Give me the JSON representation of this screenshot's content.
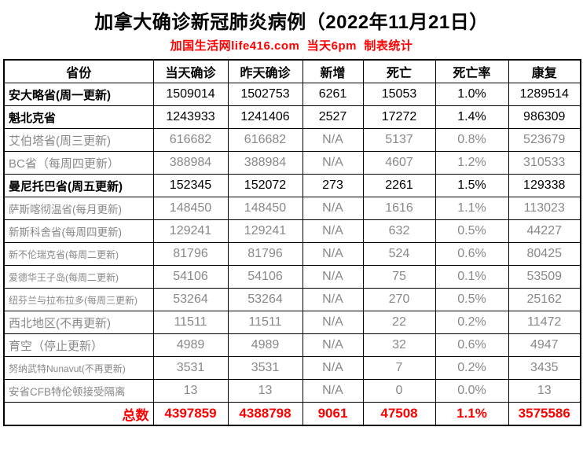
{
  "page": {
    "title": "加拿大确诊新冠肺炎病例（2022年11月21日）",
    "subtitle": "加国生活网life416.com  当天6pm  制表统计"
  },
  "colors": {
    "accent_red": "#ff0000",
    "muted_gray": "#888888",
    "text_black": "#000000",
    "border_black": "#000000",
    "background": "#ffffff"
  },
  "chart_data": {
    "type": "table",
    "title": "加拿大确诊新冠肺炎病例（2022年11月21日）",
    "columns": [
      "省份",
      "当天确诊",
      "昨天确诊",
      "新增",
      "死亡",
      "死亡率",
      "康复"
    ],
    "rows": [
      {
        "name": "安大略省(周一更新)",
        "today": "1509014",
        "yesterday": "1502753",
        "added": "6261",
        "deaths": "15053",
        "rate": "1.0%",
        "recovered": "1289514",
        "style": "active"
      },
      {
        "name": "魁北克省",
        "today": "1243933",
        "yesterday": "1241406",
        "added": "2527",
        "deaths": "17272",
        "rate": "1.4%",
        "recovered": "986309",
        "style": "active"
      },
      {
        "name": "艾伯塔省(周三更新)",
        "today": "616682",
        "yesterday": "616682",
        "added": "N/A",
        "deaths": "5137",
        "rate": "0.8%",
        "recovered": "523679",
        "style": "muted"
      },
      {
        "name": "BC省（每周四更新）",
        "today": "388984",
        "yesterday": "388984",
        "added": "N/A",
        "deaths": "4607",
        "rate": "1.2%",
        "recovered": "310533",
        "style": "muted"
      },
      {
        "name": "曼尼托巴省(周五更新)",
        "today": "152345",
        "yesterday": "152072",
        "added": "273",
        "deaths": "2261",
        "rate": "1.5%",
        "recovered": "129338",
        "style": "active"
      },
      {
        "name": "萨斯喀彻温省(每月更新)",
        "today": "148450",
        "yesterday": "148450",
        "added": "N/A",
        "deaths": "1616",
        "rate": "1.1%",
        "recovered": "113023",
        "style": "muted"
      },
      {
        "name": "新斯科舍省(每周四更新)",
        "today": "129241",
        "yesterday": "129241",
        "added": "N/A",
        "deaths": "632",
        "rate": "0.5%",
        "recovered": "44227",
        "style": "muted"
      },
      {
        "name": "新不伦瑞克省(每周二更新)",
        "today": "81796",
        "yesterday": "81796",
        "added": "N/A",
        "deaths": "524",
        "rate": "0.6%",
        "recovered": "80425",
        "style": "muted"
      },
      {
        "name": "爱德华王子岛(每周二更新)",
        "today": "54106",
        "yesterday": "54106",
        "added": "N/A",
        "deaths": "75",
        "rate": "0.1%",
        "recovered": "53509",
        "style": "muted"
      },
      {
        "name": "纽芬兰与拉布拉多(每周三更新)",
        "today": "53264",
        "yesterday": "53264",
        "added": "N/A",
        "deaths": "270",
        "rate": "0.5%",
        "recovered": "25162",
        "style": "muted"
      },
      {
        "name": "西北地区(不再更新)",
        "today": "11511",
        "yesterday": "11511",
        "added": "N/A",
        "deaths": "22",
        "rate": "0.2%",
        "recovered": "11472",
        "style": "muted"
      },
      {
        "name": "育空（停止更新）",
        "today": "4989",
        "yesterday": "4989",
        "added": "N/A",
        "deaths": "32",
        "rate": "0.6%",
        "recovered": "4947",
        "style": "muted"
      },
      {
        "name": "努纳武特Nunavut(不再更新)",
        "today": "3531",
        "yesterday": "3531",
        "added": "N/A",
        "deaths": "7",
        "rate": "0.2%",
        "recovered": "3435",
        "style": "muted"
      },
      {
        "name": "安省CFB特伦顿接受隔离",
        "today": "13",
        "yesterday": "13",
        "added": "N/A",
        "deaths": "0",
        "rate": "0.0%",
        "recovered": "13",
        "style": "muted"
      },
      {
        "name": "总数",
        "today": "4397859",
        "yesterday": "4388798",
        "added": "9061",
        "deaths": "47508",
        "rate": "1.1%",
        "recovered": "3575586",
        "style": "total"
      }
    ]
  }
}
